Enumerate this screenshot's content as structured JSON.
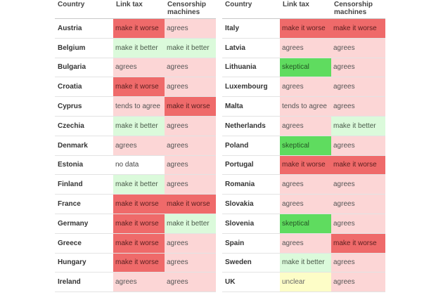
{
  "headers": {
    "country": "Country",
    "link_tax": "Link tax",
    "censorship": "Censorship machines"
  },
  "colors": {
    "worse": "#ef6a6a",
    "agrees": "#fcd6d6",
    "better": "#dbfadb",
    "skeptical": "#5fdc5f",
    "unclear": "#fdfdc7",
    "nodata": "#ffffff"
  },
  "left": [
    {
      "country": "Austria",
      "link_tax": "make it worse",
      "censorship": "agrees"
    },
    {
      "country": "Belgium",
      "link_tax": "make it better",
      "censorship": "make it better"
    },
    {
      "country": "Bulgaria",
      "link_tax": "agrees",
      "censorship": "agrees"
    },
    {
      "country": "Croatia",
      "link_tax": "make it worse",
      "censorship": "agrees"
    },
    {
      "country": "Cyprus",
      "link_tax": "tends to agree",
      "censorship": "make it worse"
    },
    {
      "country": "Czechia",
      "link_tax": "make it better",
      "censorship": "agrees"
    },
    {
      "country": "Denmark",
      "link_tax": "agrees",
      "censorship": "agrees"
    },
    {
      "country": "Estonia",
      "link_tax": "no data",
      "censorship": "agrees"
    },
    {
      "country": "Finland",
      "link_tax": "make it better",
      "censorship": "agrees"
    },
    {
      "country": "France",
      "link_tax": "make it worse",
      "censorship": "make it worse"
    },
    {
      "country": "Germany",
      "link_tax": "make it worse",
      "censorship": "make it better"
    },
    {
      "country": "Greece",
      "link_tax": "make it worse",
      "censorship": "agrees"
    },
    {
      "country": "Hungary",
      "link_tax": "make it worse",
      "censorship": "agrees"
    },
    {
      "country": "Ireland",
      "link_tax": "agrees",
      "censorship": "agrees"
    }
  ],
  "right": [
    {
      "country": "Italy",
      "link_tax": "make it worse",
      "censorship": "make it worse"
    },
    {
      "country": "Latvia",
      "link_tax": "agrees",
      "censorship": "agrees"
    },
    {
      "country": "Lithuania",
      "link_tax": "skeptical",
      "censorship": "agrees"
    },
    {
      "country": "Luxembourg",
      "link_tax": "agrees",
      "censorship": "agrees"
    },
    {
      "country": "Malta",
      "link_tax": "tends to agree",
      "censorship": "agrees"
    },
    {
      "country": "Netherlands",
      "link_tax": "agrees",
      "censorship": "make it better"
    },
    {
      "country": "Poland",
      "link_tax": "skeptical",
      "censorship": "agrees"
    },
    {
      "country": "Portugal",
      "link_tax": "make it worse",
      "censorship": "make it worse"
    },
    {
      "country": "Romania",
      "link_tax": "agrees",
      "censorship": "agrees"
    },
    {
      "country": "Slovakia",
      "link_tax": "agrees",
      "censorship": "agrees"
    },
    {
      "country": "Slovenia",
      "link_tax": "skeptical",
      "censorship": "agrees"
    },
    {
      "country": "Spain",
      "link_tax": "agrees",
      "censorship": "make it worse"
    },
    {
      "country": "Sweden",
      "link_tax": "make it better",
      "censorship": "agrees"
    },
    {
      "country": "UK",
      "link_tax": "unclear",
      "censorship": "agrees"
    }
  ]
}
